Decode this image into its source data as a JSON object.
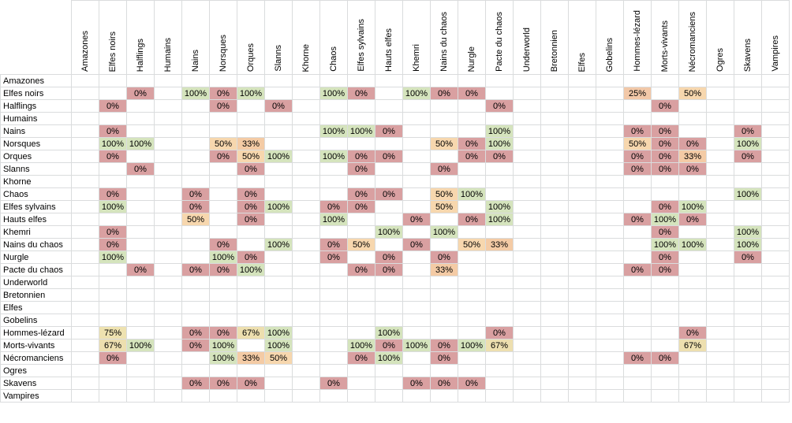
{
  "sheet": {
    "columns": [
      "Amazones",
      "Elfes noirs",
      "Halflings",
      "Humains",
      "Nains",
      "Norsques",
      "Orques",
      "Slanns",
      "Khorne",
      "Chaos",
      "Elfes sylvains",
      "Hauts elfes",
      "Khemri",
      "Nains du chaos",
      "Nurgle",
      "Pacte du chaos",
      "Underworld",
      "Bretonnien",
      "Elfes",
      "Gobelins",
      "Hommes-lézard",
      "Morts-vivants",
      "Nécromanciens",
      "Ogres",
      "Skavens",
      "Vampires"
    ],
    "rows": [
      {
        "label": "Amazones",
        "cells": {}
      },
      {
        "label": "Elfes noirs",
        "cells": {
          "2": "0%",
          "4": "100%",
          "5": "0%",
          "6": "100%",
          "9": "100%",
          "10": "0%",
          "12": "100%",
          "13": "0%",
          "14": "0%",
          "20": "25%",
          "22": "50%"
        }
      },
      {
        "label": "Halflings",
        "cells": {
          "1": "0%",
          "5": "0%",
          "7": "0%",
          "15": "0%",
          "21": "0%"
        }
      },
      {
        "label": "Humains",
        "cells": {}
      },
      {
        "label": "Nains",
        "cells": {
          "1": "0%",
          "9": "100%",
          "10": "100%",
          "11": "0%",
          "15": "100%",
          "20": "0%",
          "21": "0%",
          "24": "0%"
        }
      },
      {
        "label": "Norsques",
        "cells": {
          "1": "100%",
          "2": "100%",
          "5": "50%",
          "6": "33%",
          "13": "50%",
          "14": "0%",
          "15": "100%",
          "20": "50%",
          "21": "0%",
          "22": "0%",
          "24": "100%"
        }
      },
      {
        "label": "Orques",
        "cells": {
          "1": "0%",
          "5": "0%",
          "6": "50%",
          "7": "100%",
          "9": "100%",
          "10": "0%",
          "11": "0%",
          "14": "0%",
          "15": "0%",
          "20": "0%",
          "21": "0%",
          "22": "33%",
          "24": "0%"
        }
      },
      {
        "label": "Slanns",
        "cells": {
          "2": "0%",
          "6": "0%",
          "10": "0%",
          "13": "0%",
          "20": "0%",
          "21": "0%",
          "22": "0%"
        }
      },
      {
        "label": "Khorne",
        "cells": {}
      },
      {
        "label": "Chaos",
        "cells": {
          "1": "0%",
          "4": "0%",
          "6": "0%",
          "10": "0%",
          "11": "0%",
          "13": "50%",
          "14": "100%",
          "24": "100%"
        }
      },
      {
        "label": "Elfes sylvains",
        "cells": {
          "1": "100%",
          "4": "0%",
          "6": "0%",
          "7": "100%",
          "9": "0%",
          "10": "0%",
          "13": "50%",
          "15": "100%",
          "21": "0%",
          "22": "100%"
        }
      },
      {
        "label": "Hauts elfes",
        "cells": {
          "4": "50%",
          "6": "0%",
          "9": "100%",
          "12": "0%",
          "14": "0%",
          "15": "100%",
          "20": "0%",
          "21": "100%",
          "22": "0%"
        }
      },
      {
        "label": "Khemri",
        "cells": {
          "1": "0%",
          "11": "100%",
          "13": "100%",
          "21": "0%",
          "24": "100%"
        }
      },
      {
        "label": "Nains du chaos",
        "cells": {
          "1": "0%",
          "5": "0%",
          "7": "100%",
          "9": "0%",
          "10": "50%",
          "12": "0%",
          "14": "50%",
          "15": "33%",
          "21": "100%",
          "22": "100%",
          "24": "100%"
        }
      },
      {
        "label": "Nurgle",
        "cells": {
          "1": "100%",
          "5": "100%",
          "6": "0%",
          "9": "0%",
          "11": "0%",
          "13": "0%",
          "21": "0%",
          "24": "0%"
        }
      },
      {
        "label": "Pacte du chaos",
        "cells": {
          "2": "0%",
          "4": "0%",
          "5": "0%",
          "6": "100%",
          "10": "0%",
          "11": "0%",
          "13": "33%",
          "20": "0%",
          "21": "0%"
        }
      },
      {
        "label": "Underworld",
        "cells": {}
      },
      {
        "label": "Bretonnien",
        "cells": {}
      },
      {
        "label": "Elfes",
        "cells": {}
      },
      {
        "label": "Gobelins",
        "cells": {}
      },
      {
        "label": "Hommes-lézard",
        "cells": {
          "1": "75%",
          "4": "0%",
          "5": "0%",
          "6": "67%",
          "7": "100%",
          "11": "100%",
          "15": "0%",
          "22": "0%"
        }
      },
      {
        "label": "Morts-vivants",
        "cells": {
          "1": "67%",
          "2": "100%",
          "4": "0%",
          "5": "100%",
          "7": "100%",
          "10": "100%",
          "11": "0%",
          "12": "100%",
          "13": "0%",
          "14": "100%",
          "15": "67%",
          "22": "67%"
        }
      },
      {
        "label": "Nécromanciens",
        "cells": {
          "1": "0%",
          "5": "100%",
          "6": "33%",
          "7": "50%",
          "10": "0%",
          "11": "100%",
          "13": "0%",
          "20": "0%",
          "21": "0%"
        }
      },
      {
        "label": "Ogres",
        "cells": {}
      },
      {
        "label": "Skavens",
        "cells": {
          "4": "0%",
          "5": "0%",
          "6": "0%",
          "9": "0%",
          "12": "0%",
          "13": "0%",
          "14": "0%"
        }
      },
      {
        "label": "Vampires",
        "cells": {}
      }
    ]
  }
}
